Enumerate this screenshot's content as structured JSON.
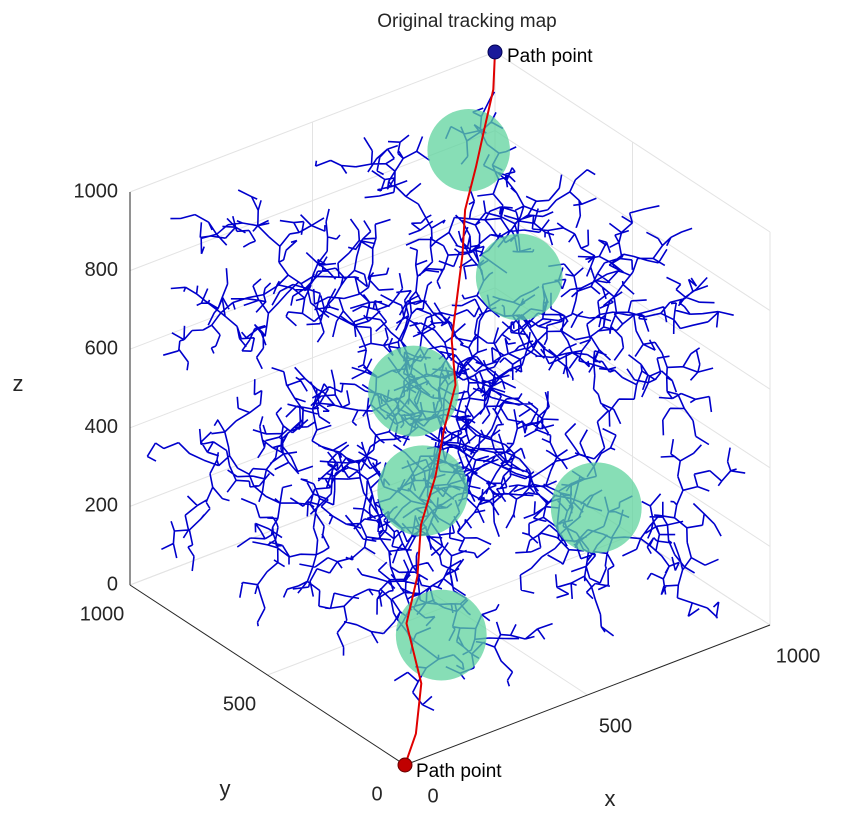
{
  "chart_data": {
    "type": "path3d",
    "title": "Original tracking map",
    "xlabel": "x",
    "ylabel": "y",
    "zlabel": "z",
    "xlim": [
      0,
      1000
    ],
    "ylim": [
      0,
      1000
    ],
    "zlim": [
      0,
      1000
    ],
    "xticks": [
      0,
      500,
      1000
    ],
    "yticks": [
      0,
      500,
      1000
    ],
    "zticks": [
      0,
      200,
      400,
      600,
      800,
      1000
    ],
    "grid": true,
    "tree_color": "#0000cc",
    "path": {
      "color": "#e00000",
      "x": [
        0,
        60,
        150,
        200,
        260,
        330,
        400,
        460,
        530,
        580,
        640,
        700,
        760,
        820,
        880,
        950,
        1000
      ],
      "y": [
        0,
        40,
        140,
        260,
        300,
        380,
        420,
        470,
        520,
        600,
        660,
        720,
        790,
        830,
        880,
        940,
        1000
      ],
      "z": [
        0,
        40,
        90,
        170,
        250,
        320,
        400,
        470,
        540,
        600,
        660,
        720,
        780,
        850,
        900,
        950,
        1000
      ]
    },
    "obstacle_color": "#5fd39e",
    "obstacles": [
      {
        "x": 830,
        "y": 870,
        "z": 870,
        "r": 100
      },
      {
        "x": 780,
        "y": 620,
        "z": 680,
        "r": 105
      },
      {
        "x": 400,
        "y": 500,
        "z": 580,
        "r": 110
      },
      {
        "x": 350,
        "y": 400,
        "z": 390,
        "r": 110
      },
      {
        "x": 750,
        "y": 300,
        "z": 250,
        "r": 110
      },
      {
        "x": 250,
        "y": 200,
        "z": 150,
        "r": 110
      }
    ],
    "annotations": [
      {
        "text": "Path point"
      },
      {
        "text": "Path point"
      }
    ]
  }
}
